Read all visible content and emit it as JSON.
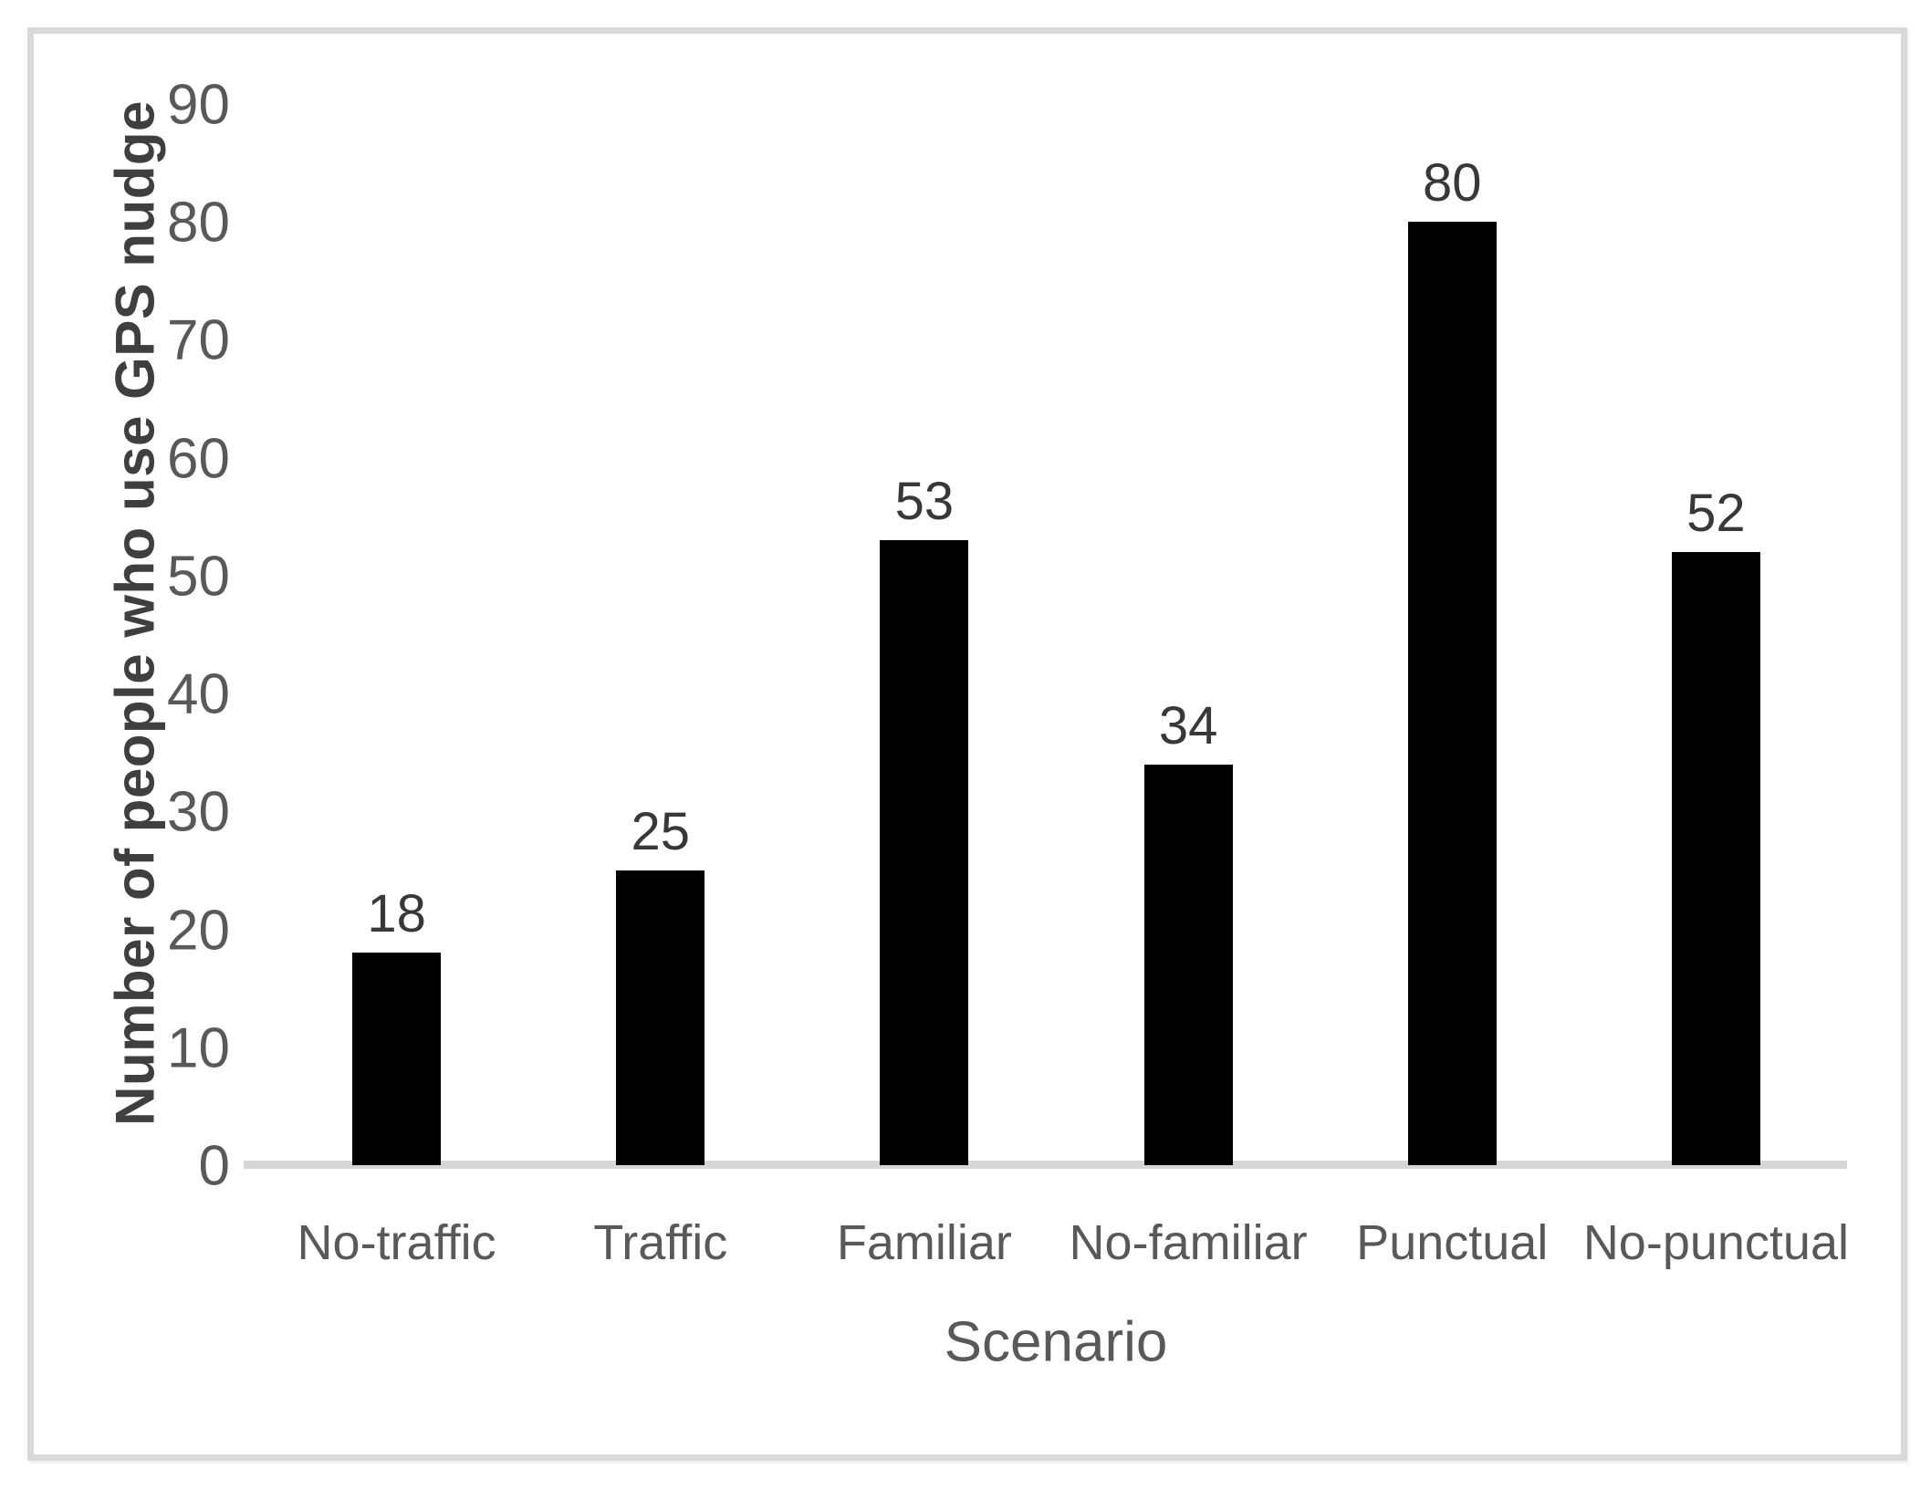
{
  "chart_data": {
    "type": "bar",
    "title": "",
    "categories": [
      "No-traffic",
      "Traffic",
      "Familiar",
      "No-familiar",
      "Punctual",
      "No-punctual"
    ],
    "values": [
      18,
      25,
      53,
      34,
      80,
      52
    ],
    "data_labels": [
      "18",
      "25",
      "53",
      "34",
      "80",
      "52"
    ],
    "xlabel": "Scenario",
    "ylabel": "Number of people who use GPS nudge",
    "ylim": [
      0,
      90
    ],
    "yticks": [
      0,
      10,
      20,
      30,
      40,
      50,
      60,
      70,
      80,
      90
    ],
    "grid": false,
    "legend_position": "none",
    "bar_color": "#000000",
    "axis_line_color": "#d6d6d6",
    "tick_label_color": "#595959",
    "category_label_color": "#595959",
    "value_label_color": "#383838",
    "axis_title_color": "#3f3f3f",
    "frame_border_color": "#d9d9d9",
    "background_color": "#ffffff"
  }
}
